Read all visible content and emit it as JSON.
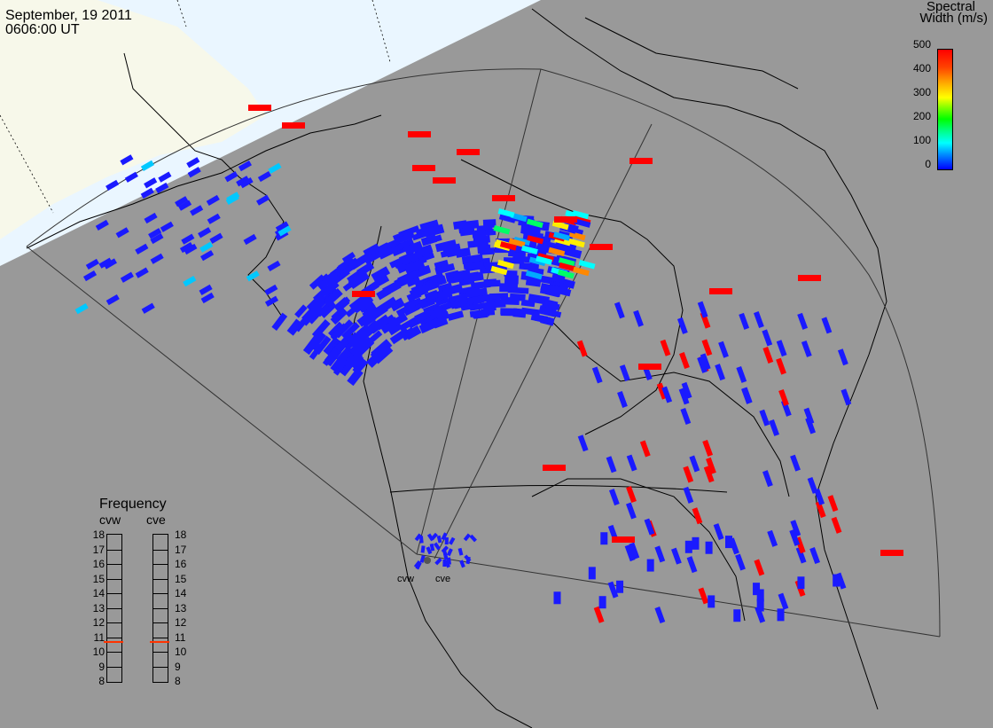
{
  "header": {
    "date": "September, 19 2011",
    "time": "0606:00 UT"
  },
  "colorbar": {
    "title_line1": "Spectral",
    "title_line2": "Width (m/s)",
    "ticks": [
      "500",
      "400",
      "300",
      "200",
      "100",
      "0"
    ]
  },
  "frequency": {
    "title": "Frequency",
    "radars": [
      {
        "name": "cvw",
        "value_mhz": 10.6
      },
      {
        "name": "cve",
        "value_mhz": 10.6
      }
    ],
    "scale": [
      "18",
      "17",
      "16",
      "15",
      "14",
      "13",
      "12",
      "11",
      "10",
      "9",
      "8"
    ]
  },
  "radar_labels": [
    "cvw",
    "cve"
  ],
  "colors": {
    "background": "#999999",
    "ocean": "#eaf6ff",
    "land_lit": "#f8f8e8",
    "scatter_low": "#1a1aff",
    "scatter_high": "#ff0000"
  }
}
